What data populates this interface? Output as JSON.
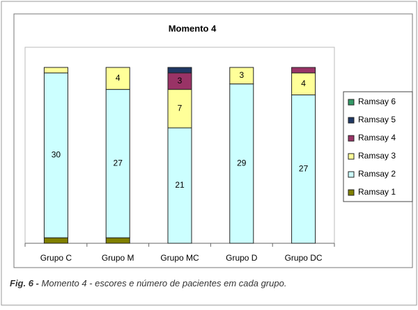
{
  "chart_data": {
    "type": "stacked_bar",
    "title": "Momento 4",
    "categories": [
      "Grupo C",
      "Grupo M",
      "Grupo MC",
      "Grupo D",
      "Grupo DC"
    ],
    "ylim": [
      0,
      32
    ],
    "series": [
      {
        "name": "Ramsay 1",
        "color": "#808000",
        "values": [
          1,
          1,
          0,
          0,
          0
        ],
        "value_labels": [
          null,
          null,
          null,
          null,
          null
        ]
      },
      {
        "name": "Ramsay 2",
        "color": "#ccffff",
        "values": [
          30,
          27,
          21,
          29,
          27
        ],
        "value_labels": [
          30,
          27,
          21,
          29,
          27
        ]
      },
      {
        "name": "Ramsay 3",
        "color": "#ffff99",
        "values": [
          1,
          4,
          7,
          3,
          4
        ],
        "value_labels": [
          null,
          4,
          7,
          3,
          4
        ]
      },
      {
        "name": "Ramsay 4",
        "color": "#993366",
        "values": [
          0,
          0,
          3,
          0,
          1
        ],
        "value_labels": [
          null,
          null,
          3,
          null,
          null
        ]
      },
      {
        "name": "Ramsay 5",
        "color": "#1f3864",
        "values": [
          0,
          0,
          1,
          0,
          0
        ],
        "value_labels": [
          null,
          null,
          null,
          null,
          null
        ]
      },
      {
        "name": "Ramsay 6",
        "color": "#339966",
        "values": [
          0,
          0,
          0,
          0,
          0
        ],
        "value_labels": [
          null,
          null,
          null,
          null,
          null
        ]
      }
    ],
    "caption_label": "Fig. 6 -",
    "caption": "Momento 4 - escores e número de pacientes em cada grupo."
  }
}
